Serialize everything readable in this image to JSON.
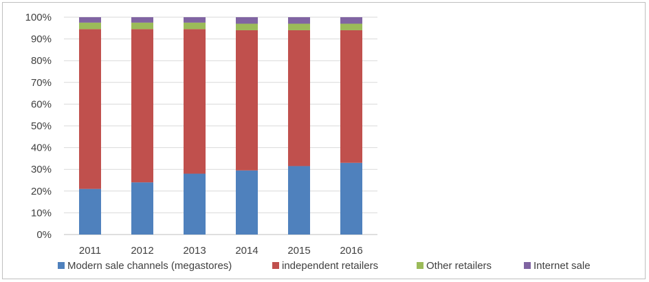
{
  "chart_data": {
    "type": "bar",
    "stacked": true,
    "categories": [
      "2011",
      "2012",
      "2013",
      "2014",
      "2015",
      "2016"
    ],
    "series": [
      {
        "name": "Modern sale channels (megastores)",
        "color": "#4f81bd",
        "values": [
          21,
          24,
          28,
          29.5,
          31.5,
          33
        ]
      },
      {
        "name": "independent retailers",
        "color": "#c0504d",
        "values": [
          73.5,
          70.5,
          66.5,
          64.5,
          62.5,
          61
        ]
      },
      {
        "name": "Other retailers",
        "color": "#9bbb59",
        "values": [
          3,
          3,
          3,
          3,
          3,
          3
        ]
      },
      {
        "name": "Internet sale",
        "color": "#8064a2",
        "values": [
          2.5,
          2.5,
          2.5,
          3,
          3,
          3
        ]
      }
    ],
    "yticks": [
      "0%",
      "10%",
      "20%",
      "30%",
      "40%",
      "50%",
      "60%",
      "70%",
      "80%",
      "90%",
      "100%"
    ],
    "ylim": [
      0,
      100
    ],
    "grid": true,
    "legend_position": "bottom",
    "title": "",
    "xlabel": "",
    "ylabel": ""
  }
}
